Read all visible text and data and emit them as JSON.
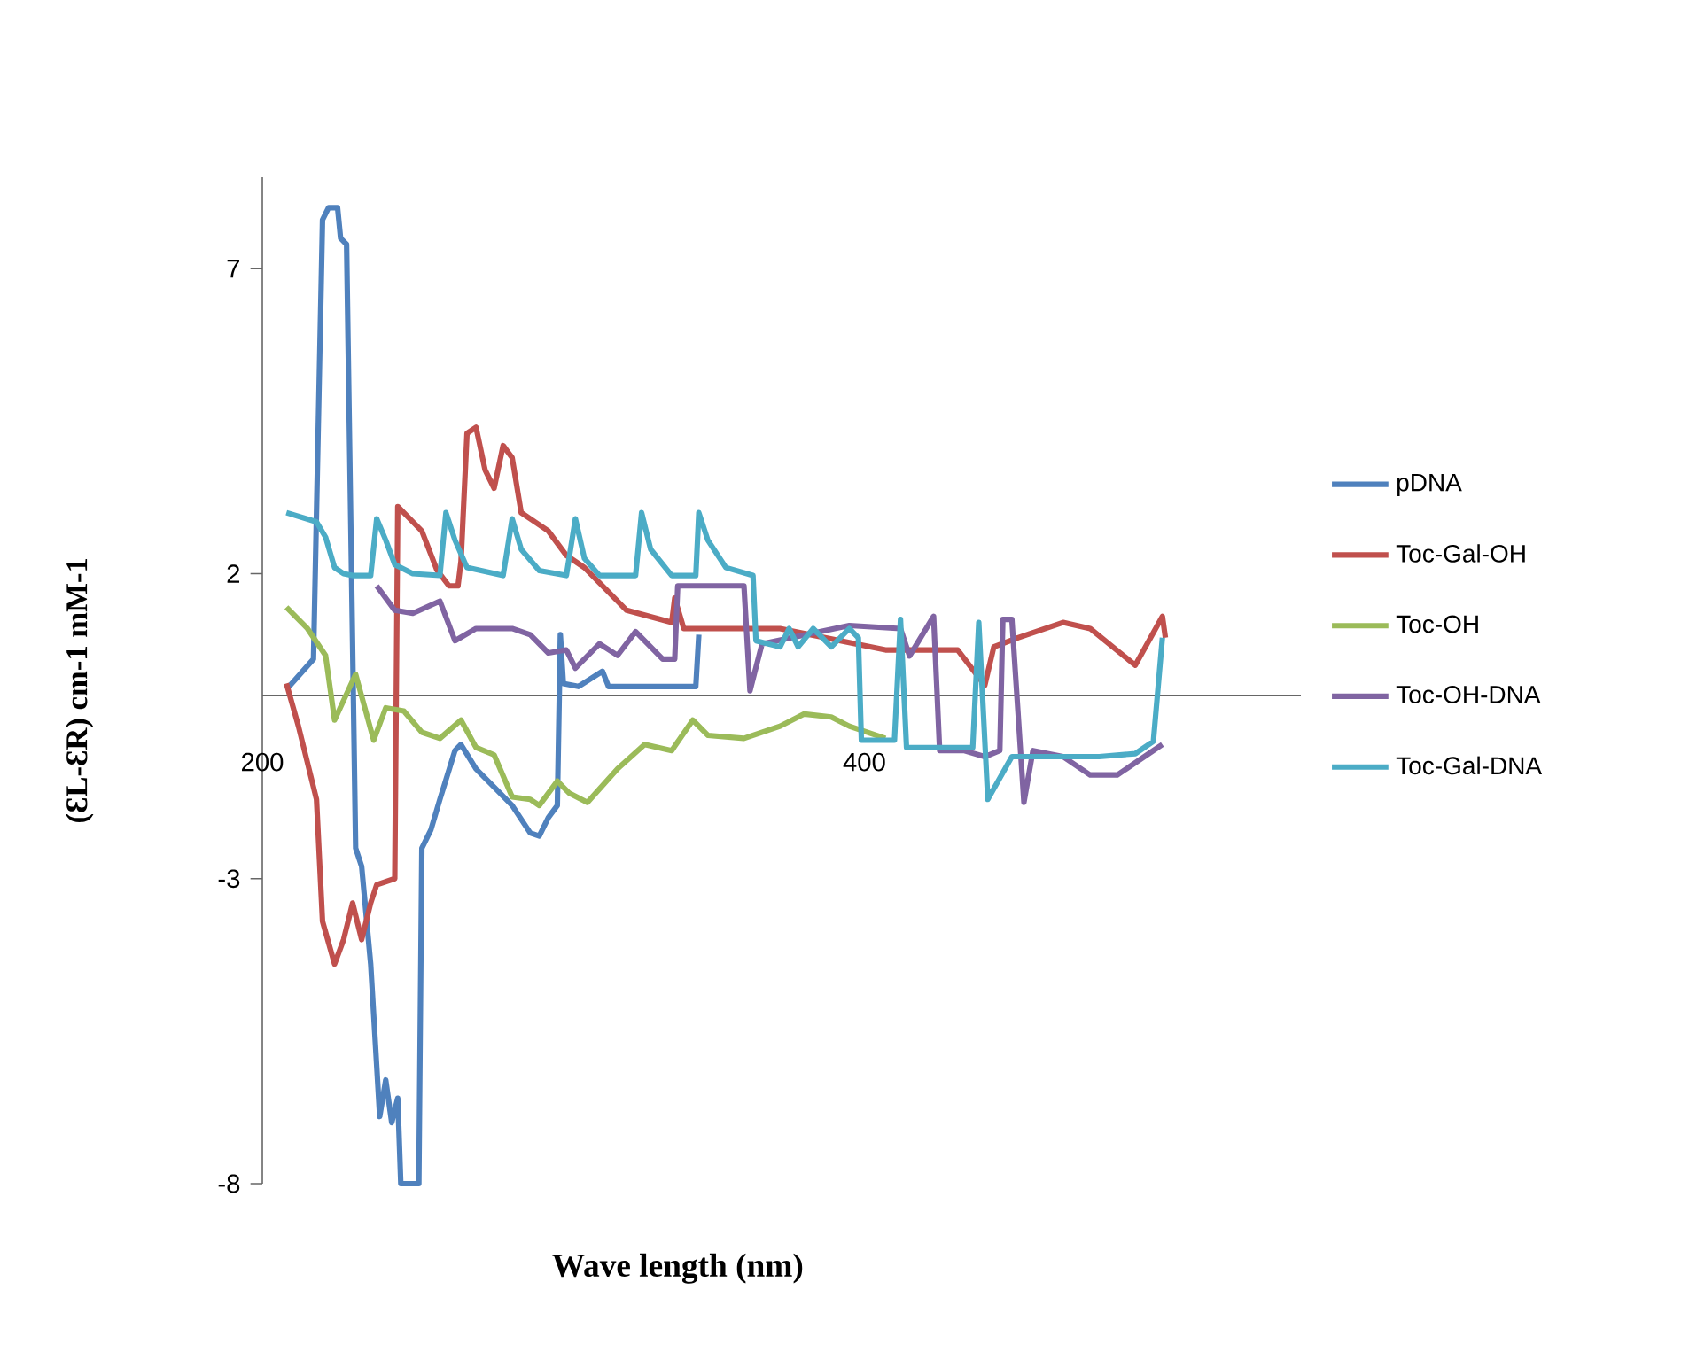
{
  "chart_data": {
    "type": "line",
    "xlabel": "Wave length  (nm)",
    "ylabel": "(ƐL-ƐR) cm-1  mM-1",
    "xlim": [
      200,
      545
    ],
    "xticks": [
      200,
      400
    ],
    "ylim": [
      -8,
      8.5
    ],
    "yticks": [
      -8,
      -3,
      2,
      7
    ],
    "legend": "right",
    "grid": false,
    "marker": "none",
    "line_style": "solid",
    "series": [
      {
        "name": "pDNA",
        "color": "#4f81bd",
        "x": [
          208,
          217,
          220,
          222,
          225,
          226,
          228,
          231,
          233,
          236,
          239,
          241,
          243,
          245,
          246,
          252,
          253,
          256,
          259,
          264,
          266,
          271,
          277,
          283,
          289,
          292,
          295,
          298,
          299,
          300,
          305,
          313,
          315,
          330,
          344,
          345
        ],
        "values": [
          0.1,
          0.6,
          7.8,
          8.0,
          8.0,
          7.5,
          7.4,
          -2.5,
          -2.8,
          -4.4,
          -6.9,
          -6.3,
          -7.0,
          -6.6,
          -8,
          -8,
          -2.5,
          -2.2,
          -1.7,
          -0.9,
          -0.8,
          -1.2,
          -1.5,
          -1.8,
          -2.25,
          -2.3,
          -2.0,
          -1.8,
          1.0,
          0.2,
          0.15,
          0.4,
          0.15,
          0.15,
          0.15,
          1.0
        ]
      },
      {
        "name": "Toc-Gal-OH",
        "color": "#c0504d",
        "x": [
          208,
          212,
          218,
          220,
          224,
          227,
          230,
          233,
          236,
          238,
          244,
          245,
          247,
          253,
          258,
          262,
          265,
          266,
          268,
          271,
          274,
          277,
          280,
          283,
          286,
          289,
          295,
          301,
          307,
          315,
          321,
          336,
          337,
          340,
          372,
          407,
          431,
          440,
          443,
          451,
          466,
          475,
          490,
          499,
          500
        ],
        "values": [
          0.2,
          -0.5,
          -1.7,
          -3.7,
          -4.4,
          -4.0,
          -3.4,
          -4.0,
          -3.4,
          -3.1,
          -3.0,
          3.1,
          3.0,
          2.7,
          2.06,
          1.8,
          1.8,
          2.2,
          4.3,
          4.4,
          3.7,
          3.4,
          4.1,
          3.9,
          3.0,
          2.9,
          2.7,
          2.3,
          2.1,
          1.7,
          1.4,
          1.2,
          1.6,
          1.1,
          1.1,
          0.75,
          0.75,
          0.17,
          0.8,
          0.95,
          1.2,
          1.1,
          0.5,
          1.3,
          0.95
        ]
      },
      {
        "name": "Toc-OH",
        "color": "#9bbb59",
        "x": [
          208,
          215,
          221,
          224,
          231,
          237,
          241,
          247,
          253,
          259,
          266,
          271,
          277,
          283,
          289,
          292,
          298,
          302,
          308,
          318,
          327,
          336,
          343,
          348,
          360,
          372,
          380,
          389,
          395,
          407
        ],
        "values": [
          1.45,
          1.1,
          0.66,
          -0.4,
          0.35,
          -0.73,
          -0.2,
          -0.25,
          -0.6,
          -0.7,
          -0.4,
          -0.85,
          -0.97,
          -1.66,
          -1.7,
          -1.8,
          -1.4,
          -1.6,
          -1.75,
          -1.2,
          -0.8,
          -0.9,
          -0.4,
          -0.65,
          -0.7,
          -0.5,
          -0.3,
          -0.35,
          -0.5,
          -0.7
        ]
      },
      {
        "name": "Toc-OH-DNA",
        "color": "#8064a2",
        "x": [
          238,
          244,
          250,
          259,
          264,
          271,
          283,
          289,
          295,
          301,
          304,
          312,
          318,
          324,
          333,
          337,
          338,
          360,
          362,
          366,
          395,
          412,
          415,
          423,
          425,
          433,
          440,
          445,
          446,
          449,
          453,
          456,
          466,
          475,
          484,
          490,
          496,
          499
        ],
        "values": [
          1.8,
          1.4,
          1.35,
          1.55,
          0.9,
          1.1,
          1.1,
          1.0,
          0.7,
          0.75,
          0.45,
          0.85,
          0.66,
          1.05,
          0.6,
          0.6,
          1.8,
          1.8,
          0.08,
          0.85,
          1.15,
          1.1,
          0.65,
          1.3,
          -0.9,
          -0.9,
          -1.0,
          -0.9,
          1.25,
          1.25,
          -1.75,
          -0.9,
          -1.0,
          -1.3,
          -1.3,
          -1.1,
          -0.9,
          -0.8
        ]
      },
      {
        "name": "Toc-Gal-DNA",
        "color": "#4bacc6",
        "x": [
          208,
          218,
          221,
          224,
          227,
          230,
          236,
          238,
          241,
          244,
          250,
          259,
          261,
          264,
          268,
          280,
          283,
          286,
          292,
          301,
          304,
          307,
          312,
          324,
          326,
          329,
          336,
          344,
          345,
          348,
          354,
          363,
          364,
          372,
          375,
          378,
          383,
          389,
          395,
          398,
          399,
          410,
          412,
          414,
          436,
          438,
          441,
          449,
          466,
          478,
          490,
          496,
          499
        ],
        "values": [
          3.0,
          2.85,
          2.6,
          2.1,
          2.0,
          1.97,
          1.97,
          2.9,
          2.55,
          2.15,
          2.0,
          1.97,
          3.0,
          2.55,
          2.1,
          1.97,
          2.9,
          2.4,
          2.05,
          1.97,
          2.9,
          2.25,
          1.97,
          1.97,
          3.0,
          2.4,
          1.97,
          1.97,
          3.0,
          2.55,
          2.1,
          1.97,
          0.9,
          0.8,
          1.1,
          0.8,
          1.1,
          0.8,
          1.1,
          0.95,
          -0.73,
          -0.73,
          1.25,
          -0.85,
          -0.85,
          1.2,
          -1.7,
          -1.0,
          -1.0,
          -1.0,
          -0.95,
          -0.75,
          0.95
        ]
      }
    ]
  }
}
